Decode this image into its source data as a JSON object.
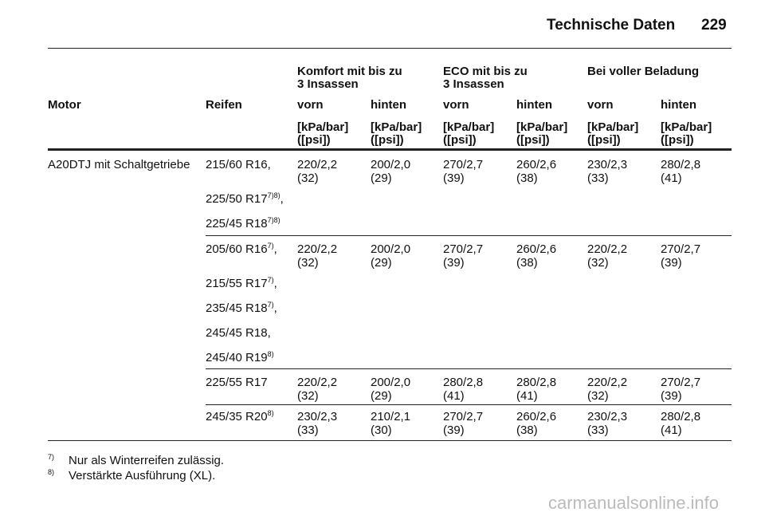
{
  "header": {
    "title": "Technische Daten",
    "page": "229"
  },
  "table": {
    "groups": [
      [
        "Komfort mit bis zu",
        "3 Insassen"
      ],
      [
        "ECO mit bis zu",
        "3 Insassen"
      ],
      [
        "Bei voller Beladung"
      ]
    ],
    "columns": [
      "Motor",
      "Reifen",
      "vorn",
      "hinten",
      "vorn",
      "hinten",
      "vorn",
      "hinten"
    ],
    "units": [
      [
        "[kPa/bar]",
        "([psi])"
      ],
      [
        "[kPa/bar]",
        "([psi])"
      ],
      [
        "[kPa/bar]",
        "([psi])"
      ],
      [
        "[kPa/bar]",
        "([psi])"
      ],
      [
        "[kPa/bar]",
        "([psi])"
      ],
      [
        "[kPa/bar]",
        "([psi])"
      ]
    ],
    "rows": [
      {
        "motor": "A20DTJ mit Schaltgetriebe",
        "tires": [
          {
            "text": "215/60 R16,"
          },
          {
            "text": "225/50 R17",
            "note": "7)8)",
            "suffix": ","
          },
          {
            "text": "225/45 R18",
            "note": "7)8)"
          }
        ],
        "values": [
          [
            "220/2,2",
            "(32)"
          ],
          [
            "200/2,0",
            "(29)"
          ],
          [
            "270/2,7",
            "(39)"
          ],
          [
            "260/2,6",
            "(38)"
          ],
          [
            "230/2,3",
            "(33)"
          ],
          [
            "280/2,8",
            "(41)"
          ]
        ]
      },
      {
        "tires": [
          {
            "text": "205/60 R16",
            "note": "7)",
            "suffix": ","
          },
          {
            "text": "215/55 R17",
            "note": "7)",
            "suffix": ","
          },
          {
            "text": "235/45 R18",
            "note": "7)",
            "suffix": ","
          },
          {
            "text": "245/45 R18,"
          },
          {
            "text": "245/40 R19",
            "note": "8)"
          }
        ],
        "values": [
          [
            "220/2,2",
            "(32)"
          ],
          [
            "200/2,0",
            "(29)"
          ],
          [
            "270/2,7",
            "(39)"
          ],
          [
            "260/2,6",
            "(38)"
          ],
          [
            "220/2,2",
            "(32)"
          ],
          [
            "270/2,7",
            "(39)"
          ]
        ]
      },
      {
        "tires": [
          {
            "text": "225/55 R17"
          }
        ],
        "values": [
          [
            "220/2,2",
            "(32)"
          ],
          [
            "200/2,0",
            "(29)"
          ],
          [
            "280/2,8",
            "(41)"
          ],
          [
            "280/2,8",
            "(41)"
          ],
          [
            "220/2,2",
            "(32)"
          ],
          [
            "270/2,7",
            "(39)"
          ]
        ]
      },
      {
        "tires": [
          {
            "text": "245/35 R20",
            "note": "8)"
          }
        ],
        "values": [
          [
            "230/2,3",
            "(33)"
          ],
          [
            "210/2,1",
            "(30)"
          ],
          [
            "270/2,7",
            "(39)"
          ],
          [
            "260/2,6",
            "(38)"
          ],
          [
            "230/2,3",
            "(33)"
          ],
          [
            "280/2,8",
            "(41)"
          ]
        ]
      }
    ]
  },
  "footnotes": [
    {
      "mark": "7)",
      "text": "Nur als Winterreifen zulässig."
    },
    {
      "mark": "8)",
      "text": "Verstärkte Ausführung (XL)."
    }
  ],
  "watermark": "carmanualsonline.info"
}
